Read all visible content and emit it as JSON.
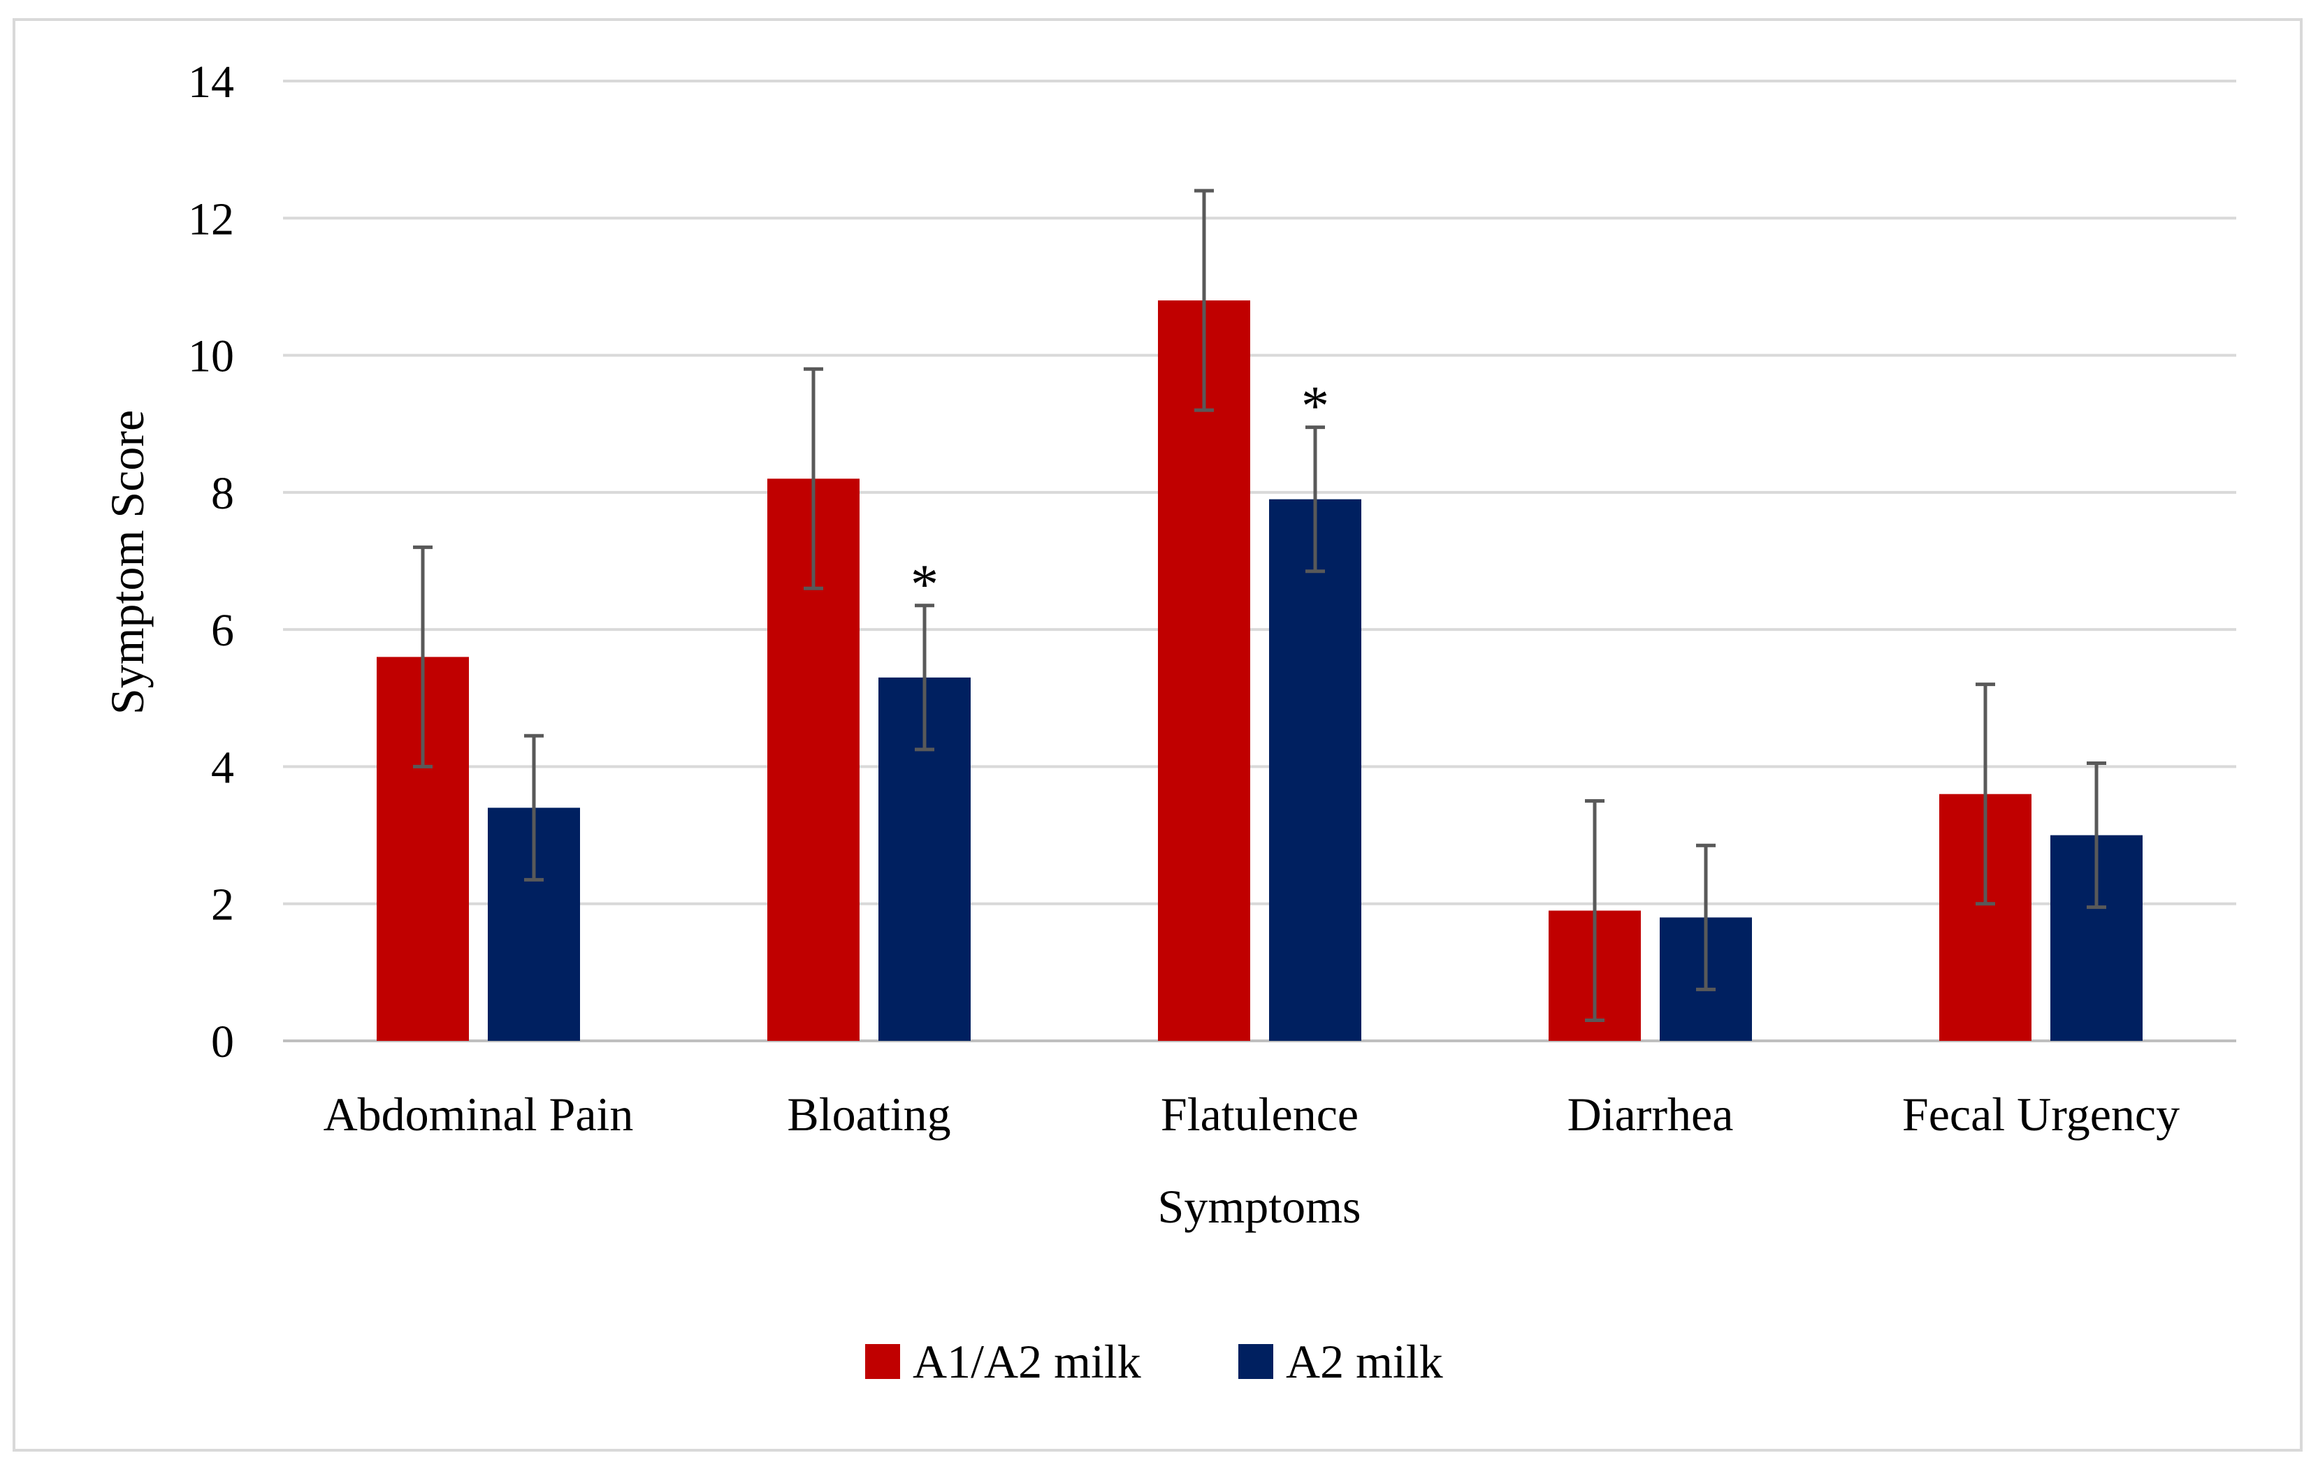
{
  "chart_data": {
    "type": "bar",
    "title": "",
    "xlabel": "Symptoms",
    "ylabel": "Symptom Score",
    "ylim": [
      0,
      14
    ],
    "yticks": [
      "0",
      "2",
      "4",
      "6",
      "8",
      "10",
      "12",
      "14"
    ],
    "grid": true,
    "legend_position": "bottom",
    "categories": [
      "Abdominal Pain",
      "Bloating",
      "Flatulence",
      "Diarrhea",
      "Fecal Urgency"
    ],
    "series": [
      {
        "name": "A1/A2 milk",
        "color": "#c00000",
        "values": [
          5.6,
          8.2,
          10.8,
          1.9,
          3.6
        ],
        "error": [
          1.6,
          1.6,
          1.6,
          1.6,
          1.6
        ],
        "significance": [
          "",
          "",
          "",
          "",
          ""
        ]
      },
      {
        "name": "A2 milk",
        "color": "#002060",
        "values": [
          3.4,
          5.3,
          7.9,
          1.8,
          3.0
        ],
        "error": [
          1.05,
          1.05,
          1.05,
          1.05,
          1.05
        ],
        "significance": [
          "",
          "*",
          "*",
          "",
          ""
        ]
      }
    ]
  }
}
